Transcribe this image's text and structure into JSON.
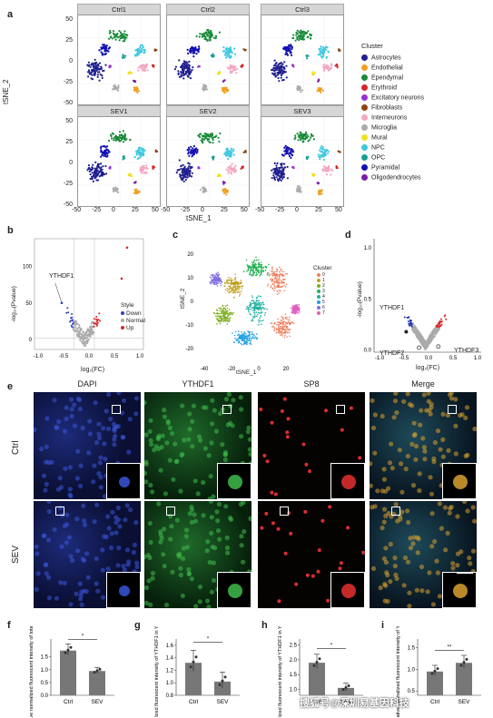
{
  "panels": {
    "a": "a",
    "b": "b",
    "c": "c",
    "d": "d",
    "e": "e",
    "f": "f",
    "g": "g",
    "h": "h",
    "i": "i"
  },
  "panel_a": {
    "facets": [
      "Ctrl1",
      "Ctrl2",
      "Ctrl3",
      "SEV1",
      "SEV2",
      "SEV3"
    ],
    "xlabel": "tSNE_1",
    "ylabel": "tSNE_2",
    "yticks": [
      "50",
      "25",
      "0",
      "-25",
      "-50"
    ],
    "xticks": [
      "-50",
      "-25",
      "0",
      "25",
      "50"
    ],
    "legend_title": "Cluster",
    "clusters": [
      {
        "name": "Astrocytes",
        "color": "#1f1f8f"
      },
      {
        "name": "Endothelial",
        "color": "#f0a020"
      },
      {
        "name": "Ependymal",
        "color": "#1a8a3a"
      },
      {
        "name": "Erythroid",
        "color": "#d62728"
      },
      {
        "name": "Excitatory neurons",
        "color": "#9b30d0"
      },
      {
        "name": "Fibroblasts",
        "color": "#8b4513"
      },
      {
        "name": "Interneurons",
        "color": "#f4a6c0"
      },
      {
        "name": "Microglia",
        "color": "#aaaaaa"
      },
      {
        "name": "Mural",
        "color": "#f0e020"
      },
      {
        "name": "NPC",
        "color": "#40c8e0"
      },
      {
        "name": "OPC",
        "color": "#18a090"
      },
      {
        "name": "Pyramidal",
        "color": "#1010b0"
      },
      {
        "name": "Oligodendrocytes",
        "color": "#7b1fa2"
      }
    ]
  },
  "panel_b": {
    "xlabel": "log₂(FC)",
    "ylabel": "-log₁₀(Pvalue)",
    "xticks": [
      "-1.0",
      "-0.5",
      "0.0",
      "0.5",
      "1.0"
    ],
    "yticks": [
      "100",
      "50",
      "0"
    ],
    "gene": "YTHDF1",
    "legend_title": "Style",
    "legend": [
      {
        "label": "Down",
        "color": "#3040c0"
      },
      {
        "label": "Normal",
        "color": "#aaaaaa"
      },
      {
        "label": "Up",
        "color": "#d62728"
      }
    ]
  },
  "panel_c": {
    "xlabel": "tSNE_1",
    "ylabel": "tSNE_2",
    "xticks": [
      "-40",
      "-20",
      "0",
      "20"
    ],
    "yticks": [
      "20",
      "10",
      "0",
      "-10",
      "-20"
    ],
    "legend_title": "Cluster",
    "legend": [
      {
        "label": "0",
        "color": "#f08060"
      },
      {
        "label": "1",
        "color": "#c0a020"
      },
      {
        "label": "2",
        "color": "#80b020"
      },
      {
        "label": "3",
        "color": "#20b050"
      },
      {
        "label": "4",
        "color": "#20b0a0"
      },
      {
        "label": "5",
        "color": "#20a0e0"
      },
      {
        "label": "6",
        "color": "#8070e0"
      },
      {
        "label": "7",
        "color": "#e060c0"
      }
    ]
  },
  "panel_d": {
    "xlabel": "log₂(FC)",
    "ylabel": "-log₁₀(Pvalue)",
    "xticks": [
      "-1.0",
      "-0.5",
      "0.0",
      "0.5",
      "1.0"
    ],
    "yticks": [
      "1.0",
      "0.5",
      "0.0"
    ],
    "genes": [
      "YTHDF1",
      "YTHDF2",
      "YTHDF3"
    ]
  },
  "panel_e": {
    "columns": [
      "DAPI",
      "YTHDF1",
      "SP8",
      "Merge"
    ],
    "rows": [
      "Ctrl",
      "SEV"
    ]
  },
  "bars": {
    "f": {
      "ylabel": "Relative normalized fluorescent intensity of total YTHDF1",
      "yticks": [
        "1.5",
        "1.0",
        "0.5",
        "0.0"
      ],
      "categories": [
        "Ctrl",
        "SEV"
      ],
      "values": [
        1.75,
        0.95
      ],
      "sig": "*"
    },
    "g": {
      "ylabel": "Relative normalized fluorescent intensity of YTHDF1 in YTHDF1+SP8+ cells",
      "yticks": [
        "1.6",
        "1.4",
        "1.2",
        "1.0",
        "0.8"
      ],
      "categories": [
        "Ctrl",
        "SEV"
      ],
      "values": [
        1.32,
        1.02
      ],
      "sig": "*"
    },
    "h": {
      "ylabel": "Relative normalized fluorescent intensity of YTHDF1 in YTHDF1+SP8+ cells",
      "yticks": [
        "2.5",
        "2.0",
        "1.5",
        "1.0"
      ],
      "categories": [
        "Ctrl",
        "SEV"
      ],
      "values": [
        1.9,
        1.05
      ],
      "sig": "*"
    },
    "i": {
      "ylabel": "Relative normalized fluorescent intensity of YTHDF1",
      "yticks": [
        "1.5",
        "1.0",
        "0.5"
      ],
      "categories": [
        "Ctrl",
        "SEV"
      ],
      "values": [
        0.95,
        1.15
      ],
      "sig": "**"
    }
  },
  "watermark": "搜狐号@深圳易基因科技"
}
